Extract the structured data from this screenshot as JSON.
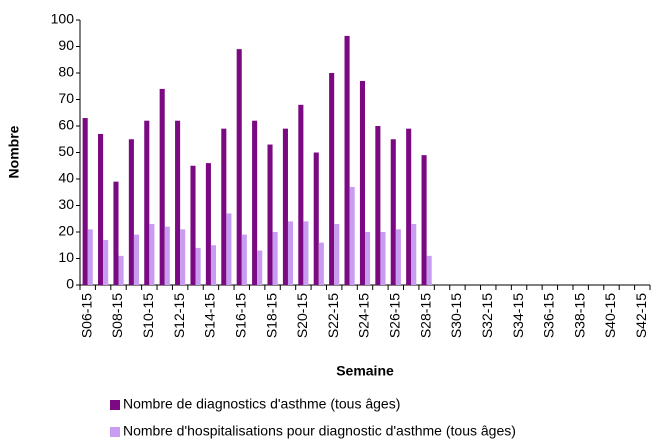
{
  "chart_data": {
    "type": "bar",
    "xlabel": "Semaine",
    "ylabel": "Nombre",
    "categories": [
      "S06-15",
      null,
      "S08-15",
      null,
      "S10-15",
      null,
      "S12-15",
      null,
      "S14-15",
      null,
      "S16-15",
      null,
      "S18-15",
      null,
      "S20-15",
      null,
      "S22-15",
      null,
      "S24-15",
      null,
      "S26-15",
      null,
      "S28-15",
      null,
      "S30-15",
      null,
      "S32-15",
      null,
      "S34-15",
      null,
      "S36-15",
      null,
      "S38-15",
      null,
      "S40-15",
      null,
      "S42-15"
    ],
    "series": [
      {
        "name": "Nombre de diagnostics d'asthme (tous âges)",
        "color": "#7b0a82",
        "values": [
          63,
          57,
          39,
          55,
          62,
          74,
          62,
          45,
          46,
          59,
          89,
          62,
          53,
          59,
          68,
          50,
          80,
          94,
          77,
          60,
          55,
          59,
          49,
          null,
          null,
          null,
          null,
          null,
          null,
          null,
          null,
          null,
          null,
          null,
          null,
          null,
          null
        ]
      },
      {
        "name": "Nombre d'hospitalisations pour diagnostic d'asthme (tous âges)",
        "color": "#c89cf0",
        "values": [
          21,
          17,
          11,
          19,
          23,
          22,
          21,
          14,
          15,
          27,
          19,
          13,
          20,
          24,
          24,
          16,
          23,
          37,
          20,
          20,
          21,
          23,
          11,
          null,
          null,
          null,
          null,
          null,
          null,
          null,
          null,
          null,
          null,
          null,
          null,
          null,
          null
        ]
      }
    ],
    "ylim": [
      0,
      100
    ],
    "yticks": [
      0,
      10,
      20,
      30,
      40,
      50,
      60,
      70,
      80,
      90,
      100
    ],
    "grid": false
  }
}
